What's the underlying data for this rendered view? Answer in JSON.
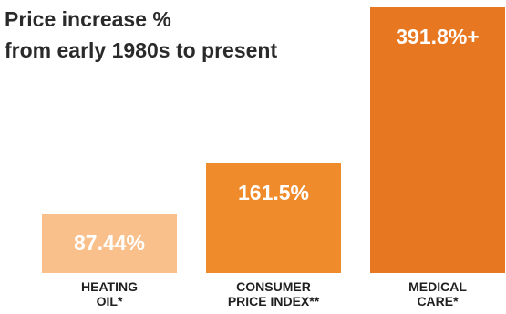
{
  "chart_data": {
    "type": "bar",
    "title_lines": [
      "Price increase %",
      "from early 1980s to present"
    ],
    "categories": [
      [
        "HEATING",
        "OIL*"
      ],
      [
        "CONSUMER",
        "PRICE INDEX**"
      ],
      [
        "MEDICAL",
        "CARE*"
      ]
    ],
    "values": [
      87.44,
      161.5,
      391.8
    ],
    "value_labels": [
      "87.44%",
      "161.5%",
      "391.8%+"
    ],
    "colors": [
      "#f9c08c",
      "#f08b2c",
      "#e87722"
    ],
    "xlabel": "",
    "ylabel": "",
    "ylim": [
      0,
      391.8
    ],
    "grid": false,
    "legend": "none"
  }
}
